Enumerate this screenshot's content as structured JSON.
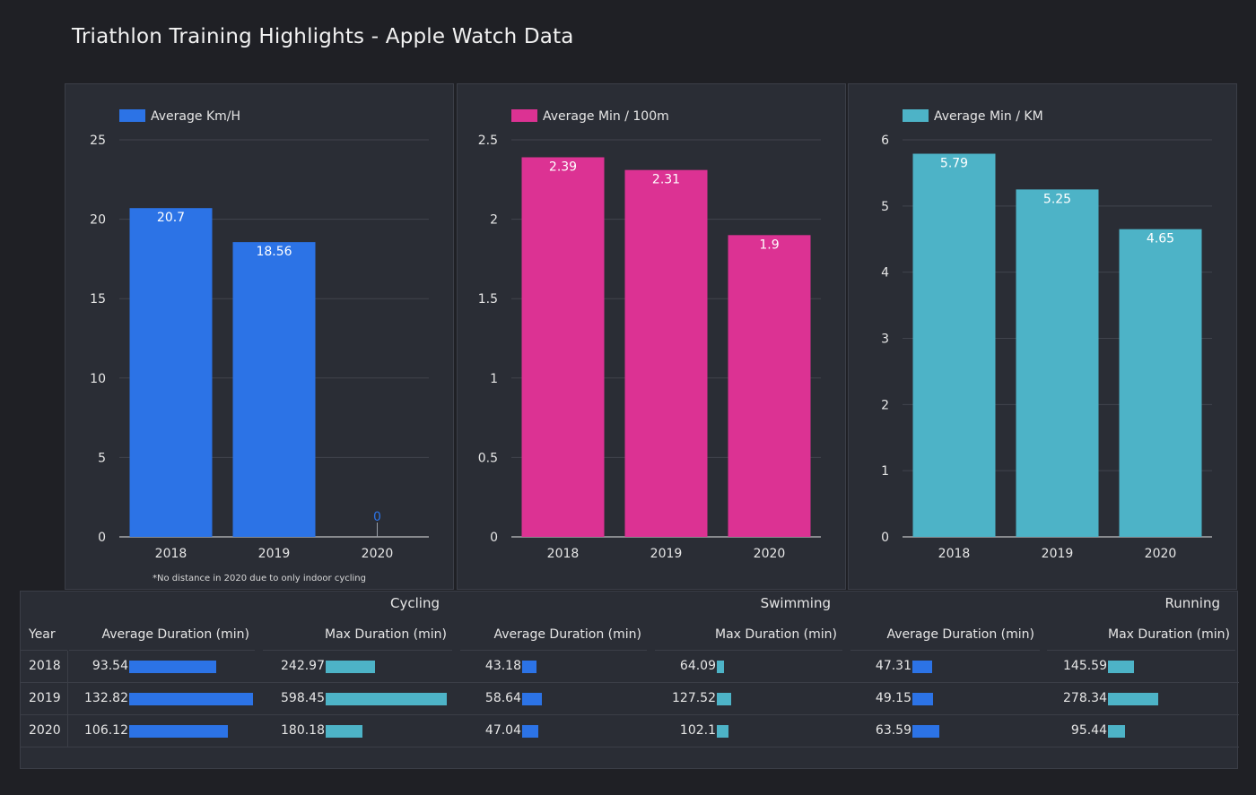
{
  "page": {
    "title": "Triathlon Training Highlights - Apple Watch Data"
  },
  "chart_data": [
    {
      "type": "bar",
      "legend": "Average Km/H",
      "color": "#2c73e6",
      "categories": [
        "2018",
        "2019",
        "2020"
      ],
      "values": [
        20.7,
        18.56,
        0
      ],
      "labels": [
        "20.7",
        "18.56",
        "0"
      ],
      "yticks": [
        "0",
        "5",
        "10",
        "15",
        "20",
        "25"
      ],
      "ylim": [
        0,
        25
      ],
      "grid": true,
      "legend_position": "top-left",
      "footnote": "*No distance in 2020 due to only indoor cycling"
    },
    {
      "type": "bar",
      "legend": "Average Min / 100m",
      "color": "#dc3293",
      "categories": [
        "2018",
        "2019",
        "2020"
      ],
      "values": [
        2.39,
        2.31,
        1.9
      ],
      "labels": [
        "2.39",
        "2.31",
        "1.9"
      ],
      "yticks": [
        "0",
        "0.5",
        "1",
        "1.5",
        "2",
        "2.5"
      ],
      "ylim": [
        0,
        2.5
      ],
      "grid": true,
      "legend_position": "top-left"
    },
    {
      "type": "bar",
      "legend": "Average Min / KM",
      "color": "#4db3c7",
      "categories": [
        "2018",
        "2019",
        "2020"
      ],
      "values": [
        5.79,
        5.25,
        4.65
      ],
      "labels": [
        "5.79",
        "5.25",
        "4.65"
      ],
      "yticks": [
        "0",
        "1",
        "2",
        "3",
        "4",
        "5",
        "6"
      ],
      "ylim": [
        0,
        6
      ],
      "grid": true,
      "legend_position": "top-left"
    }
  ],
  "table": {
    "year_header": "Year",
    "groups": [
      "Cycling",
      "Swimming",
      "Running"
    ],
    "columns": [
      "Average Duration (min)",
      "Max Duration (min)",
      "Average Duration (min)",
      "Max Duration (min)",
      "Average Duration (min)",
      "Max Duration (min)"
    ],
    "rows": [
      {
        "year": "2018",
        "cells": [
          "93.54",
          "242.97",
          "43.18",
          "64.09",
          "47.31",
          "145.59"
        ]
      },
      {
        "year": "2019",
        "cells": [
          "132.82",
          "598.45",
          "58.64",
          "127.52",
          "49.15",
          "278.34"
        ]
      },
      {
        "year": "2020",
        "cells": [
          "106.12",
          "180.18",
          "47.04",
          "102.1",
          "63.59",
          "95.44"
        ]
      }
    ],
    "bar_values": [
      [
        93.54,
        242.97,
        43.18,
        64.09,
        47.31,
        145.59
      ],
      [
        132.82,
        598.45,
        58.64,
        127.52,
        49.15,
        278.34
      ],
      [
        106.12,
        180.18,
        47.04,
        102.1,
        63.59,
        95.44
      ]
    ],
    "bar_colors": [
      "#2c73e6",
      "#4db3c7",
      "#2c73e6",
      "#4db3c7",
      "#2c73e6",
      "#4db3c7"
    ]
  }
}
